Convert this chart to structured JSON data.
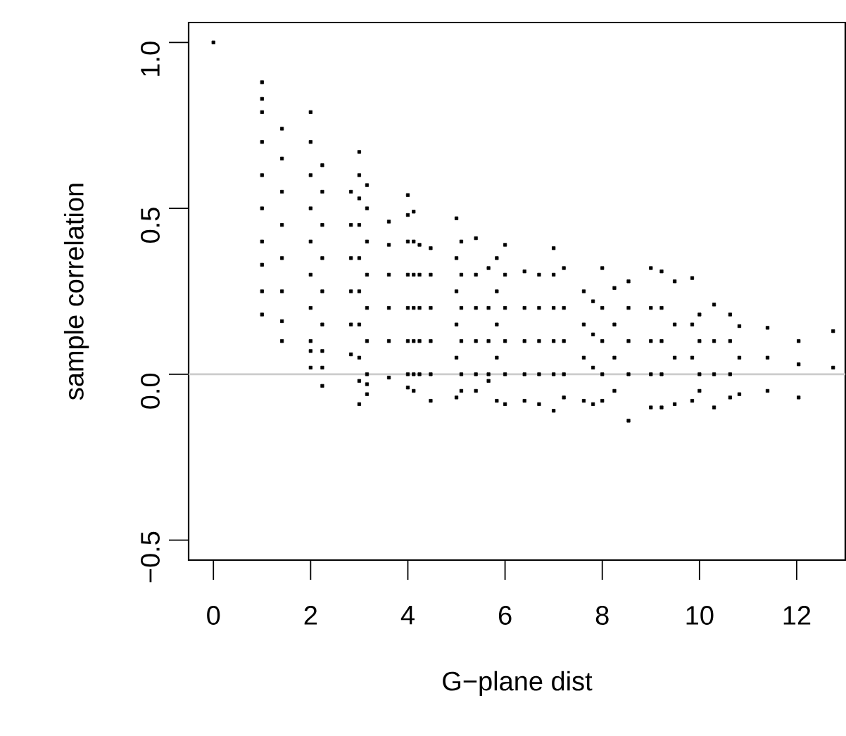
{
  "chart_data": {
    "type": "scatter",
    "xlabel": "G−plane dist",
    "ylabel": "sample correlation",
    "xlim": [
      -0.51,
      13.0
    ],
    "ylim": [
      -0.56,
      1.06
    ],
    "xticks": [
      0,
      2,
      4,
      6,
      8,
      10,
      12
    ],
    "yticks": [
      {
        "value": -0.5,
        "label": "−0.5"
      },
      {
        "value": 0,
        "label": "0.0"
      },
      {
        "value": 0.5,
        "label": "0.5"
      },
      {
        "value": 1.0,
        "label": "1.0"
      }
    ],
    "marker": "square",
    "grid": false,
    "ref_lines": [
      {
        "axis": "y",
        "value": 0,
        "color": "#cccccc",
        "line_style": "solid"
      }
    ],
    "series": [
      {
        "color": "#000000",
        "x": [
          0,
          1.0,
          1.0,
          1.0,
          1.0,
          1.0,
          1.0,
          1.0,
          1.0,
          1.0,
          1.0,
          1.41,
          1.41,
          1.41,
          1.41,
          1.41,
          1.41,
          1.41,
          1.41,
          2.0,
          2.0,
          2.0,
          2.0,
          2.0,
          2.0,
          2.0,
          2.0,
          2.0,
          2.0,
          2.24,
          2.24,
          2.24,
          2.24,
          2.24,
          2.24,
          2.24,
          2.24,
          2.24,
          2.83,
          2.83,
          2.83,
          2.83,
          2.83,
          2.83,
          3.0,
          3.0,
          3.0,
          3.0,
          3.0,
          3.0,
          3.0,
          3.0,
          3.0,
          3.0,
          3.16,
          3.16,
          3.16,
          3.16,
          3.16,
          3.16,
          3.16,
          3.16,
          3.16,
          3.61,
          3.61,
          3.61,
          3.61,
          3.61,
          3.61,
          4.0,
          4.0,
          4.0,
          4.0,
          4.0,
          4.0,
          4.0,
          4.0,
          4.12,
          4.12,
          4.12,
          4.12,
          4.12,
          4.12,
          4.12,
          4.24,
          4.24,
          4.24,
          4.24,
          4.24,
          4.47,
          4.47,
          4.47,
          4.47,
          4.47,
          4.47,
          5.0,
          5.0,
          5.0,
          5.0,
          5.0,
          5.0,
          5.1,
          5.1,
          5.1,
          5.1,
          5.1,
          5.1,
          5.4,
          5.4,
          5.4,
          5.4,
          5.4,
          5.4,
          5.66,
          5.66,
          5.66,
          5.66,
          5.66,
          5.83,
          5.83,
          5.83,
          5.83,
          5.83,
          6.0,
          6.0,
          6.0,
          6.0,
          6.0,
          6.0,
          6.4,
          6.4,
          6.4,
          6.4,
          6.4,
          6.7,
          6.7,
          6.7,
          6.7,
          6.7,
          7.0,
          7.0,
          7.0,
          7.0,
          7.0,
          7.0,
          7.21,
          7.21,
          7.21,
          7.21,
          7.21,
          7.62,
          7.62,
          7.62,
          7.62,
          7.81,
          7.81,
          7.81,
          7.81,
          8.0,
          8.0,
          8.0,
          8.0,
          8.0,
          8.25,
          8.25,
          8.25,
          8.25,
          8.54,
          8.54,
          8.54,
          8.54,
          8.54,
          9.0,
          9.0,
          9.0,
          9.0,
          9.0,
          9.22,
          9.22,
          9.22,
          9.22,
          9.22,
          9.49,
          9.49,
          9.49,
          9.49,
          9.85,
          9.85,
          9.85,
          9.85,
          10.0,
          10.0,
          10.0,
          10.0,
          10.3,
          10.3,
          10.3,
          10.3,
          10.63,
          10.63,
          10.63,
          10.63,
          10.82,
          10.82,
          10.82,
          11.4,
          11.4,
          11.4,
          12.04,
          12.04,
          12.04,
          12.75,
          12.75
        ],
        "values": [
          1.0,
          0.88,
          0.83,
          0.79,
          0.7,
          0.6,
          0.5,
          0.4,
          0.33,
          0.25,
          0.18,
          0.74,
          0.65,
          0.55,
          0.45,
          0.35,
          0.25,
          0.16,
          0.1,
          0.79,
          0.7,
          0.6,
          0.5,
          0.4,
          0.3,
          0.2,
          0.1,
          0.07,
          0.02,
          0.63,
          0.55,
          0.45,
          0.35,
          0.25,
          0.15,
          0.07,
          0.02,
          -0.035,
          0.55,
          0.45,
          0.35,
          0.25,
          0.15,
          0.06,
          0.67,
          0.6,
          0.53,
          0.45,
          0.35,
          0.25,
          0.15,
          0.05,
          -0.02,
          -0.09,
          0.57,
          0.5,
          0.4,
          0.3,
          0.2,
          0.1,
          0.0,
          -0.03,
          -0.06,
          0.46,
          0.39,
          0.3,
          0.2,
          0.1,
          -0.01,
          0.54,
          0.48,
          0.4,
          0.3,
          0.2,
          0.1,
          0.0,
          -0.04,
          0.49,
          0.4,
          0.3,
          0.2,
          0.1,
          0.0,
          -0.05,
          0.39,
          0.3,
          0.2,
          0.1,
          0.0,
          0.38,
          0.3,
          0.2,
          0.1,
          0.0,
          -0.08,
          0.47,
          0.35,
          0.25,
          0.15,
          0.05,
          -0.07,
          0.4,
          0.3,
          0.2,
          0.1,
          0.0,
          -0.05,
          0.41,
          0.3,
          0.2,
          0.1,
          0.0,
          -0.05,
          0.32,
          0.2,
          0.1,
          0.0,
          -0.02,
          0.35,
          0.25,
          0.15,
          0.05,
          -0.08,
          0.39,
          0.3,
          0.2,
          0.1,
          0.0,
          -0.09,
          0.31,
          0.2,
          0.1,
          0.0,
          -0.08,
          0.3,
          0.2,
          0.1,
          0.0,
          -0.09,
          0.38,
          0.3,
          0.2,
          0.1,
          0.0,
          -0.11,
          0.32,
          0.2,
          0.1,
          0.0,
          -0.07,
          0.25,
          0.15,
          0.05,
          -0.08,
          0.22,
          0.12,
          0.02,
          -0.09,
          0.32,
          0.2,
          0.1,
          0.0,
          -0.08,
          0.26,
          0.15,
          0.05,
          -0.05,
          0.28,
          0.2,
          0.1,
          0.0,
          -0.14,
          0.32,
          0.2,
          0.1,
          0.0,
          -0.1,
          0.31,
          0.2,
          0.1,
          0.0,
          -0.1,
          0.28,
          0.15,
          0.05,
          -0.09,
          0.29,
          0.15,
          0.05,
          -0.08,
          0.18,
          0.1,
          0.0,
          -0.05,
          0.21,
          0.1,
          0.0,
          -0.1,
          0.18,
          0.1,
          0.0,
          -0.07,
          0.145,
          0.05,
          -0.06,
          0.14,
          0.05,
          -0.05,
          0.1,
          0.03,
          -0.07,
          0.13,
          0.02
        ]
      }
    ]
  }
}
